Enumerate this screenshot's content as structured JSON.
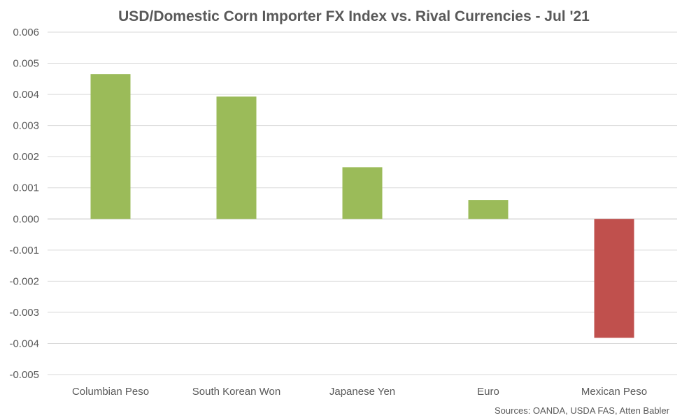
{
  "chart_data": {
    "type": "bar",
    "title": "USD/Domestic Corn Importer FX Index vs. Rival Currencies - Jul '21",
    "categories": [
      "Columbian Peso",
      "South Korean Won",
      "Japanese Yen",
      "Euro",
      "Mexican Peso"
    ],
    "values": [
      0.00465,
      0.00393,
      0.00166,
      0.00061,
      -0.00382
    ],
    "ylim": [
      -0.005,
      0.006
    ],
    "yticks": [
      "0.006",
      "0.005",
      "0.004",
      "0.003",
      "0.002",
      "0.001",
      "0.000",
      "-0.001",
      "-0.002",
      "-0.003",
      "-0.004",
      "-0.005"
    ],
    "ytick_values": [
      0.006,
      0.005,
      0.004,
      0.003,
      0.002,
      0.001,
      0.0,
      -0.001,
      -0.002,
      -0.003,
      -0.004,
      -0.005
    ],
    "grid": true,
    "colors": {
      "positive": "#9bbb59",
      "negative": "#c0504d"
    },
    "source": "Sources: OANDA, USDA FAS, Atten Babler"
  }
}
